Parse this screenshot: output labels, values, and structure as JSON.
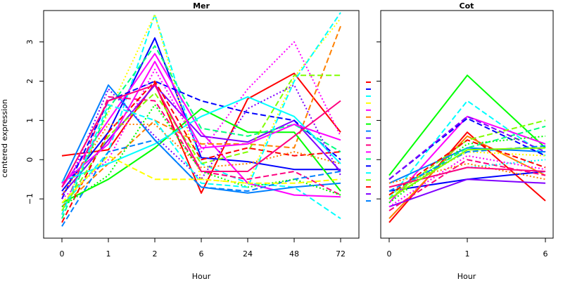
{
  "chart_data": [
    {
      "type": "line",
      "title": "Mer",
      "xlabel": "Hour",
      "ylabel": "centered expression",
      "categories": [
        "0",
        "1",
        "2",
        "6",
        "24",
        "48",
        "72"
      ],
      "yticks": [
        -1,
        0,
        1,
        2,
        3
      ],
      "ylim": [
        -2,
        3.8
      ],
      "grid": false,
      "series": [
        {
          "color": "#ff0000",
          "dash": "solid",
          "values": [
            0.1,
            0.25,
            1.95,
            -0.85,
            1.55,
            2.2,
            0.7
          ]
        },
        {
          "color": "#0000ff",
          "dash": "solid",
          "values": [
            -0.8,
            0.7,
            3.1,
            0.05,
            -0.05,
            -0.25,
            -0.25
          ]
        },
        {
          "color": "#00ffff",
          "dash": "dashed",
          "values": [
            -1.2,
            0.2,
            3.7,
            -0.1,
            -0.6,
            -0.7,
            -1.5
          ]
        },
        {
          "color": "#ffff00",
          "dash": "dotted",
          "values": [
            -1.3,
            1.2,
            3.7,
            -0.5,
            -0.6,
            2.1,
            3.6
          ]
        },
        {
          "color": "#ff00ff",
          "dash": "solid",
          "values": [
            -0.7,
            1.0,
            2.7,
            0.7,
            -0.6,
            -0.9,
            -0.95
          ]
        },
        {
          "color": "#ff8000",
          "dash": "dashed",
          "values": [
            -1.2,
            -0.1,
            1.0,
            0.4,
            0.4,
            0.3,
            3.4
          ]
        },
        {
          "color": "#00ff00",
          "dash": "solid",
          "values": [
            -1.1,
            -0.5,
            0.3,
            1.3,
            0.7,
            0.7,
            -0.8
          ]
        },
        {
          "color": "#0080ff",
          "dash": "solid",
          "values": [
            -0.6,
            1.9,
            0.5,
            -0.7,
            -0.85,
            -0.7,
            -0.6
          ]
        },
        {
          "color": "#8000ff",
          "dash": "solid",
          "values": [
            -0.9,
            0.5,
            1.9,
            0.6,
            0.45,
            1.0,
            -0.3
          ]
        },
        {
          "color": "#ff0080",
          "dash": "dashed",
          "values": [
            -1.4,
            1.6,
            1.5,
            -0.3,
            -0.5,
            -0.3,
            -0.9
          ]
        },
        {
          "color": "#ff00ff",
          "dash": "dotted",
          "values": [
            -1.0,
            0.0,
            2.3,
            0.2,
            1.8,
            3.0,
            0.6
          ]
        },
        {
          "color": "#00ff80",
          "dash": "dashed",
          "values": [
            -1.5,
            1.3,
            2.9,
            0.8,
            0.6,
            0.9,
            0.2
          ]
        },
        {
          "color": "#0000ff",
          "dash": "dashed",
          "values": [
            -1.0,
            1.5,
            2.0,
            1.5,
            1.2,
            1.0,
            0.0
          ]
        },
        {
          "color": "#00ffff",
          "dash": "solid",
          "values": [
            -0.55,
            -0.1,
            0.4,
            1.1,
            1.6,
            1.1,
            -0.1
          ]
        },
        {
          "color": "#80ff00",
          "dash": "dashed",
          "values": [
            -1.3,
            0.6,
            1.7,
            -0.1,
            0.2,
            2.15,
            2.15
          ]
        },
        {
          "color": "#ff0000",
          "dash": "dashed",
          "values": [
            -1.6,
            0.7,
            2.0,
            0.0,
            0.3,
            0.1,
            0.2
          ]
        },
        {
          "color": "#8000ff",
          "dash": "dotted",
          "values": [
            -1.0,
            1.8,
            0.6,
            -0.5,
            1.3,
            1.9,
            -0.4
          ]
        },
        {
          "color": "#0080ff",
          "dash": "dashed",
          "values": [
            -1.7,
            0.2,
            0.5,
            -0.7,
            -0.8,
            -0.5,
            -0.3
          ]
        },
        {
          "color": "#ff8000",
          "dash": "dotted",
          "values": [
            -0.9,
            0.9,
            0.9,
            -0.2,
            -0.1,
            0.2,
            -0.1
          ]
        },
        {
          "color": "#00ff00",
          "dash": "dotted",
          "values": [
            -1.2,
            -0.4,
            1.4,
            -0.3,
            -0.7,
            -0.5,
            -0.9
          ]
        },
        {
          "color": "#ff00ff",
          "dash": "solid",
          "values": [
            -0.6,
            0.4,
            2.5,
            0.3,
            0.4,
            0.9,
            0.5
          ]
        },
        {
          "color": "#00ffff",
          "dash": "dashed",
          "values": [
            -1.4,
            1.4,
            1.0,
            -0.6,
            -0.7,
            2.0,
            3.75
          ]
        },
        {
          "color": "#ffff00",
          "dash": "dashed",
          "values": [
            -1.1,
            0.1,
            -0.5,
            -0.5,
            -0.6,
            -0.6,
            -0.5
          ]
        },
        {
          "color": "#ff0080",
          "dash": "solid",
          "values": [
            -0.7,
            1.5,
            1.9,
            -0.3,
            -0.3,
            0.6,
            1.5
          ]
        }
      ]
    },
    {
      "type": "line",
      "title": "Cot",
      "xlabel": "Hour",
      "ylabel": "",
      "categories": [
        "0",
        "1",
        "6"
      ],
      "yticks": [
        -1,
        0,
        1,
        2,
        3
      ],
      "ylim": [
        -2,
        3.8
      ],
      "grid": false,
      "series": [
        {
          "color": "#ff0000",
          "dash": "solid",
          "values": [
            -1.6,
            0.7,
            -1.05
          ]
        },
        {
          "color": "#0000ff",
          "dash": "solid",
          "values": [
            -0.8,
            -0.5,
            -0.3
          ]
        },
        {
          "color": "#00ff00",
          "dash": "solid",
          "values": [
            -0.4,
            2.15,
            0.3
          ]
        },
        {
          "color": "#00ffff",
          "dash": "dashed",
          "values": [
            -1.0,
            1.5,
            0.1
          ]
        },
        {
          "color": "#ff00ff",
          "dash": "solid",
          "values": [
            -1.1,
            1.1,
            0.4
          ]
        },
        {
          "color": "#ff8000",
          "dash": "solid",
          "values": [
            -1.5,
            0.6,
            -0.4
          ]
        },
        {
          "color": "#0080ff",
          "dash": "solid",
          "values": [
            -0.6,
            0.3,
            0.2
          ]
        },
        {
          "color": "#8000ff",
          "dash": "solid",
          "values": [
            -1.2,
            -0.5,
            -0.6
          ]
        },
        {
          "color": "#00ff80",
          "dash": "dashed",
          "values": [
            -0.9,
            0.3,
            0.85
          ]
        },
        {
          "color": "#ff0080",
          "dash": "dashed",
          "values": [
            -1.3,
            0.0,
            -0.4
          ]
        },
        {
          "color": "#ffff00",
          "dash": "dotted",
          "values": [
            -0.9,
            0.2,
            0.1
          ]
        },
        {
          "color": "#80ff00",
          "dash": "dashed",
          "values": [
            -1.0,
            0.5,
            1.0
          ]
        },
        {
          "color": "#0000ff",
          "dash": "dashed",
          "values": [
            -0.5,
            1.05,
            0.1
          ]
        },
        {
          "color": "#ff00ff",
          "dash": "dotted",
          "values": [
            -1.2,
            0.1,
            -0.25
          ]
        },
        {
          "color": "#00ffff",
          "dash": "dotted",
          "values": [
            -0.7,
            -0.2,
            0.0
          ]
        },
        {
          "color": "#8000ff",
          "dash": "dashed",
          "values": [
            -0.5,
            1.1,
            0.2
          ]
        },
        {
          "color": "#ff8000",
          "dash": "dotted",
          "values": [
            -0.6,
            -0.1,
            -0.5
          ]
        },
        {
          "color": "#00ff00",
          "dash": "dotted",
          "values": [
            -1.1,
            0.4,
            0.6
          ]
        },
        {
          "color": "#ff0000",
          "dash": "dashed",
          "values": [
            -0.9,
            0.5,
            -0.2
          ]
        },
        {
          "color": "#0080ff",
          "dash": "dashed",
          "values": [
            -0.8,
            0.2,
            0.35
          ]
        },
        {
          "color": "#ff0080",
          "dash": "solid",
          "values": [
            -0.7,
            -0.2,
            -0.3
          ]
        },
        {
          "color": "#80ff00",
          "dash": "solid",
          "values": [
            -1.0,
            0.25,
            0.3
          ]
        }
      ]
    }
  ]
}
